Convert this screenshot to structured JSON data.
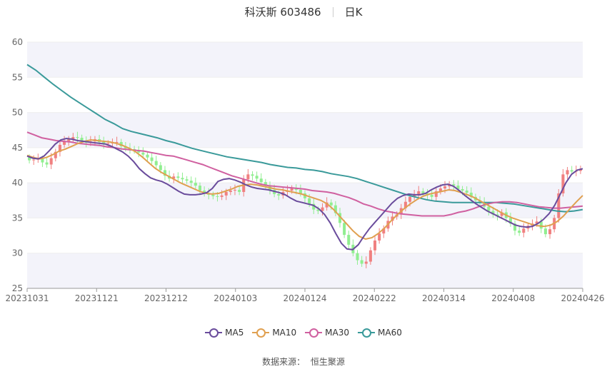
{
  "header": {
    "name_code": "科沃斯 603486",
    "period": "日K"
  },
  "source": {
    "label": "数据来源：",
    "name": "恒生聚源"
  },
  "colors": {
    "up": "#f08080",
    "down": "#90ee90",
    "grid": "#eeeeee",
    "band": "#f3f3fa",
    "ma5": "#6a4c9c",
    "ma10": "#e0a050",
    "ma30": "#d060a0",
    "ma60": "#3a9a9a"
  },
  "chart_data": {
    "type": "candlestick",
    "title": "科沃斯 603486 日K",
    "ylim": [
      25,
      60
    ],
    "yticks": [
      25,
      30,
      35,
      40,
      45,
      50,
      55,
      60
    ],
    "grid": true,
    "x_tick_labels": [
      "20231031",
      "20231121",
      "20231212",
      "20240103",
      "20240124",
      "20240222",
      "20240314",
      "20240408",
      "20240426"
    ],
    "legend_position": "bottom",
    "series": [
      {
        "name": "MA5",
        "color": "#6a4c9c"
      },
      {
        "name": "MA10",
        "color": "#e0a050"
      },
      {
        "name": "MA30",
        "color": "#d060a0"
      },
      {
        "name": "MA60",
        "color": "#3a9a9a"
      }
    ],
    "close_approx": [
      43.2,
      43.3,
      43.4,
      42.9,
      42.6,
      43.5,
      44.4,
      45.4,
      45.9,
      46.2,
      46.5,
      46.4,
      46.0,
      45.7,
      45.9,
      46.2,
      45.8,
      45.5,
      45.6,
      45.7,
      45.8,
      45.2,
      44.9,
      44.8,
      44.6,
      44.3,
      44.0,
      43.6,
      43.1,
      42.5,
      41.8,
      41.0,
      40.6,
      40.9,
      40.7,
      40.5,
      40.3,
      40.0,
      39.6,
      38.9,
      38.5,
      38.3,
      38.1,
      38.0,
      38.2,
      38.7,
      38.9,
      39.0,
      38.7,
      40.5,
      41.2,
      41.0,
      40.6,
      40.1,
      39.6,
      39.0,
      38.4,
      38.2,
      38.7,
      38.9,
      39.2,
      39.0,
      38.5,
      37.8,
      37.0,
      36.2,
      36.0,
      36.5,
      37.2,
      36.8,
      35.7,
      34.3,
      32.6,
      31.2,
      30.0,
      29.0,
      28.5,
      28.8,
      30.4,
      31.8,
      32.8,
      33.5,
      34.6,
      35.2,
      35.5,
      36.4,
      37.3,
      38.0,
      38.4,
      38.8,
      38.5,
      38.3,
      38.0,
      38.8,
      39.2,
      39.5,
      39.8,
      39.6,
      39.1,
      38.9,
      38.6,
      38.0,
      37.5,
      37.2,
      36.6,
      36.0,
      35.5,
      35.3,
      35.8,
      35.0,
      34.2,
      33.2,
      32.9,
      33.5,
      33.9,
      34.2,
      34.5,
      33.5,
      32.7,
      33.4,
      35.0,
      38.5,
      41.2,
      41.8,
      41.6,
      41.7,
      42.0
    ],
    "ma5": [
      43.8,
      43.5,
      43.4,
      43.8,
      44.6,
      45.5,
      46.1,
      46.3,
      46.2,
      46.0,
      45.9,
      45.8,
      45.7,
      45.6,
      45.5,
      45.2,
      44.8,
      44.4,
      43.8,
      43.0,
      42.0,
      41.3,
      40.7,
      40.4,
      40.2,
      39.8,
      39.3,
      38.8,
      38.4,
      38.3,
      38.3,
      38.4,
      38.6,
      39.2,
      40.2,
      40.5,
      40.6,
      40.4,
      40.1,
      39.7,
      39.4,
      39.2,
      39.1,
      39.0,
      38.8,
      38.6,
      38.3,
      37.8,
      37.4,
      37.2,
      37.0,
      36.8,
      36.3,
      35.5,
      34.3,
      32.8,
      31.4,
      30.6,
      30.5,
      31.2,
      32.4,
      33.5,
      34.4,
      35.3,
      36.2,
      37.1,
      37.8,
      38.2,
      38.4,
      38.3,
      38.3,
      38.5,
      39.0,
      39.4,
      39.7,
      39.8,
      39.5,
      38.9,
      38.2,
      37.6,
      37.0,
      36.5,
      36.0,
      35.6,
      35.2,
      34.8,
      34.4,
      34.0,
      33.8,
      33.7,
      33.8,
      34.2,
      34.8,
      35.6,
      36.8,
      38.4,
      40.0,
      41.2,
      41.8,
      42.0
    ],
    "ma10": [
      43.9,
      43.6,
      43.4,
      43.6,
      44.0,
      44.5,
      44.8,
      45.2,
      45.6,
      45.9,
      46.1,
      46.0,
      45.9,
      45.8,
      45.6,
      45.3,
      44.9,
      44.4,
      43.7,
      42.9,
      42.1,
      41.5,
      41.0,
      40.5,
      40.0,
      39.6,
      39.2,
      38.8,
      38.5,
      38.4,
      38.5,
      38.8,
      39.1,
      39.5,
      39.7,
      39.8,
      39.7,
      39.5,
      39.3,
      39.1,
      39.0,
      38.8,
      38.6,
      38.4,
      38.1,
      37.8,
      37.5,
      37.0,
      36.2,
      35.2,
      34.2,
      33.2,
      32.4,
      32.0,
      32.2,
      32.8,
      33.6,
      34.6,
      35.5,
      36.3,
      37.0,
      37.6,
      38.1,
      38.4,
      38.6,
      38.8,
      39.0,
      38.9,
      38.6,
      38.3,
      37.9,
      37.4,
      36.9,
      36.4,
      35.9,
      35.4,
      35.0,
      34.7,
      34.4,
      34.1,
      33.9,
      33.8,
      34.0,
      34.5,
      35.3,
      36.3,
      37.3,
      38.2
    ],
    "ma30": [
      47.2,
      46.8,
      46.4,
      46.2,
      46.0,
      45.9,
      45.8,
      45.6,
      45.5,
      45.4,
      45.3,
      45.1,
      45.0,
      44.8,
      44.7,
      44.6,
      44.5,
      44.3,
      44.1,
      43.9,
      43.8,
      43.5,
      43.2,
      42.9,
      42.6,
      42.2,
      41.8,
      41.4,
      41.0,
      40.7,
      40.4,
      40.1,
      39.8,
      39.6,
      39.5,
      39.4,
      39.3,
      39.2,
      39.1,
      38.9,
      38.8,
      38.7,
      38.5,
      38.2,
      37.9,
      37.5,
      37.0,
      36.7,
      36.3,
      36.0,
      35.8,
      35.6,
      35.5,
      35.4,
      35.3,
      35.3,
      35.3,
      35.3,
      35.5,
      35.8,
      36.0,
      36.3,
      36.7,
      37.0,
      37.2,
      37.3,
      37.3,
      37.2,
      37.0,
      36.8,
      36.6,
      36.5,
      36.4,
      36.4,
      36.5,
      36.6,
      36.7
    ],
    "ma60": [
      56.8,
      56.0,
      55.0,
      54.0,
      53.1,
      52.2,
      51.4,
      50.6,
      49.8,
      49.0,
      48.4,
      47.7,
      47.3,
      47.0,
      46.7,
      46.4,
      46.0,
      45.7,
      45.3,
      44.9,
      44.6,
      44.3,
      44.0,
      43.7,
      43.5,
      43.3,
      43.1,
      42.9,
      42.6,
      42.4,
      42.2,
      42.1,
      41.9,
      41.8,
      41.6,
      41.3,
      41.1,
      40.9,
      40.6,
      40.2,
      39.8,
      39.4,
      39.0,
      38.6,
      38.2,
      37.9,
      37.6,
      37.4,
      37.3,
      37.2,
      37.2,
      37.2,
      37.2,
      37.2,
      37.2,
      37.1,
      37.0,
      36.8,
      36.6,
      36.4,
      36.2,
      36.0,
      35.9,
      36.0,
      36.2
    ]
  }
}
